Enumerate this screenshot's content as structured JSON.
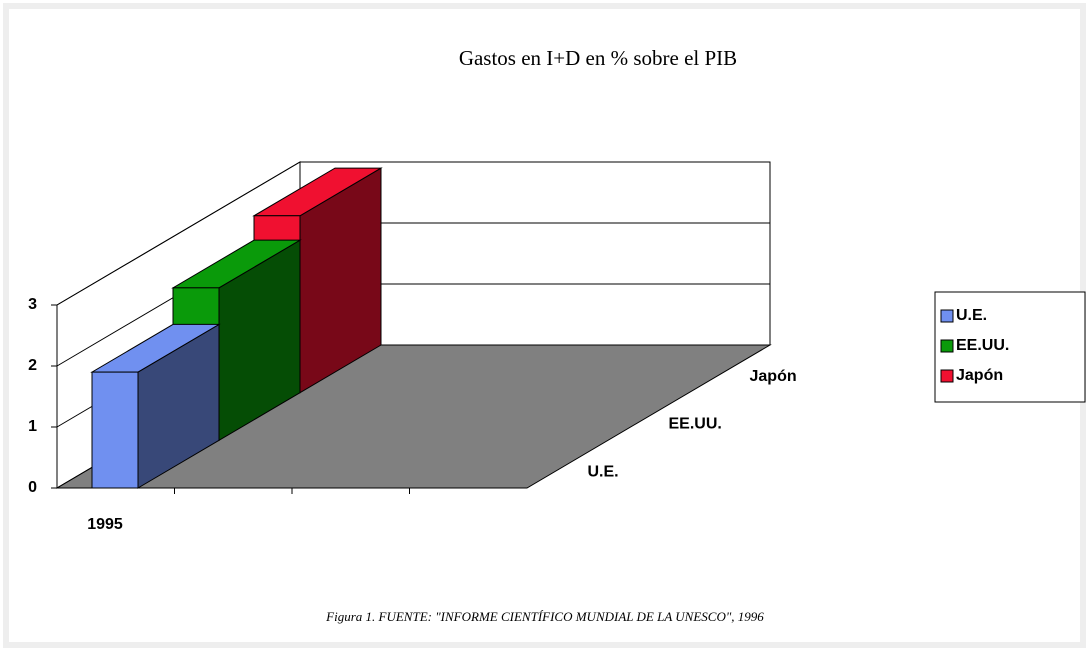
{
  "chart_data": {
    "type": "bar3d",
    "title": "Gastos en I+D en %  sobre el PIB",
    "caption": "Figura 1.  FUENTE: \"INFORME CIENTÍFICO MUNDIAL DE LA UNESCO\", 1996",
    "categories": [
      "1995"
    ],
    "series": [
      {
        "name": "U.E.",
        "color": "#7090f0",
        "values": [
          1.9
        ]
      },
      {
        "name": "EE.UU.",
        "color": "#0a9a0a",
        "values": [
          2.5
        ]
      },
      {
        "name": "Japón",
        "color": "#f01030",
        "values": [
          2.9
        ]
      }
    ],
    "ylim": [
      0,
      3
    ],
    "yticks": [
      0,
      1,
      2,
      3
    ],
    "grid": true,
    "legend": "right"
  }
}
